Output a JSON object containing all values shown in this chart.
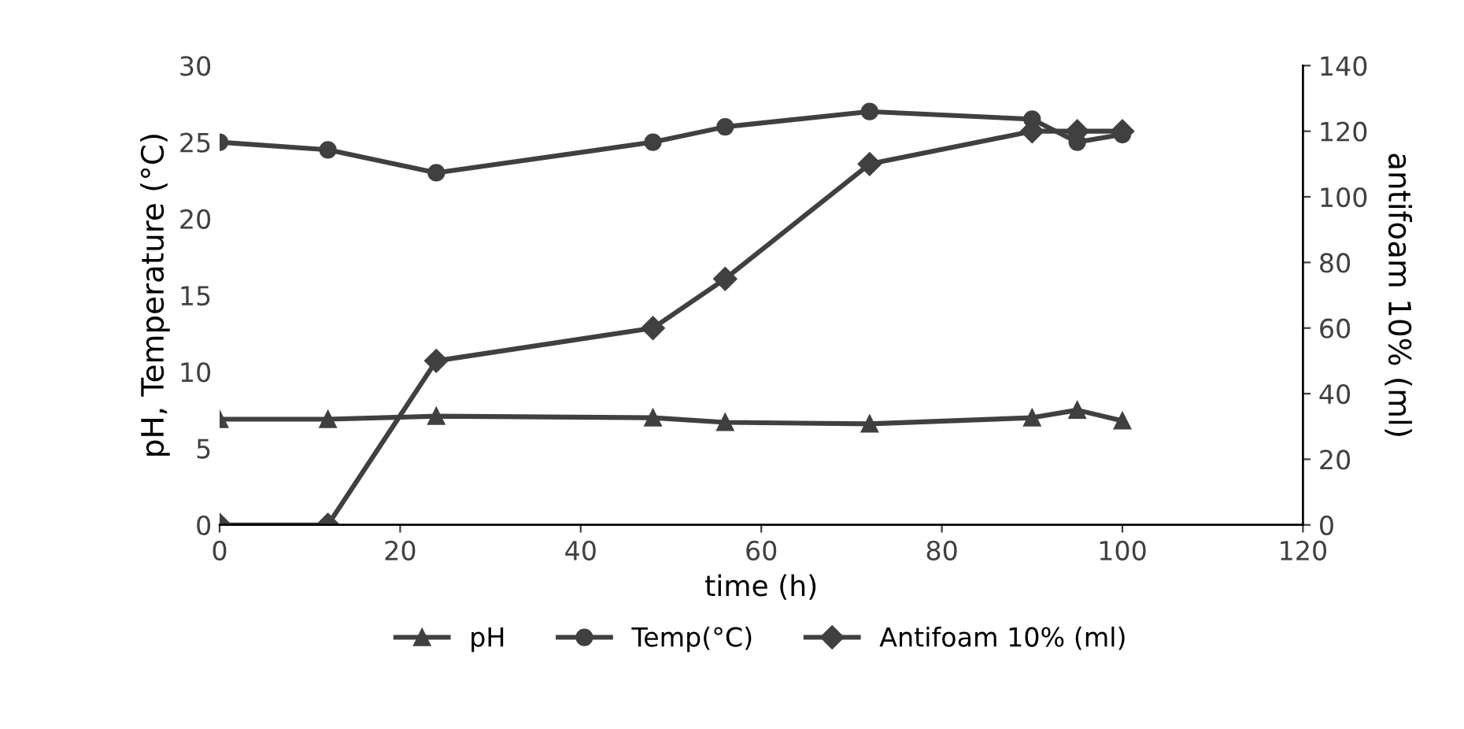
{
  "chart_data": {
    "type": "line",
    "xlabel": "time (h)",
    "ylabel": "pH, Temperature (°C)",
    "y2label": "antifoam 10% (ml)",
    "xlim": [
      0,
      120
    ],
    "xticks": [
      0,
      20,
      40,
      60,
      80,
      100,
      120
    ],
    "ylim": [
      0,
      30
    ],
    "yticks": [
      0,
      5,
      10,
      15,
      20,
      25,
      30
    ],
    "y2lim": [
      0,
      140
    ],
    "y2ticks": [
      0,
      20,
      40,
      60,
      80,
      100,
      120,
      140
    ],
    "x": [
      0,
      12,
      24,
      48,
      56,
      72,
      90,
      95,
      100
    ],
    "series": [
      {
        "name": "pH",
        "color": "#404040",
        "marker": "triangle",
        "values": [
          6.9,
          6.9,
          7.1,
          7.0,
          6.7,
          6.6,
          7.0,
          7.5,
          6.8
        ]
      },
      {
        "name": "Temp(°C)",
        "color": "#404040",
        "marker": "circle",
        "values": [
          25,
          24.5,
          23,
          25,
          26,
          27,
          26.5,
          25,
          25.5
        ]
      },
      {
        "name": "Antifoam 10% (ml)",
        "color": "#404040",
        "marker": "diamond",
        "axis": "y2",
        "values": [
          0,
          0,
          50,
          60,
          75,
          110,
          120,
          120,
          120
        ]
      }
    ],
    "legend": "bottom",
    "grid": false
  }
}
